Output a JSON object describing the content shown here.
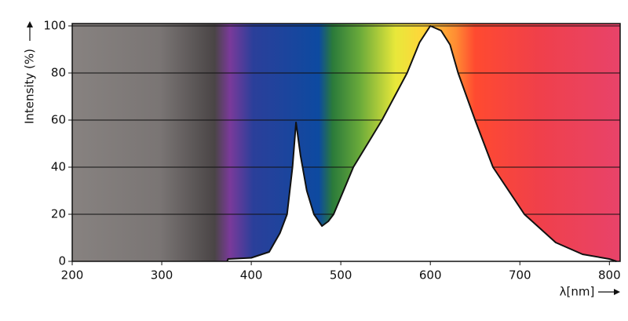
{
  "chart_data": {
    "type": "area",
    "x": [
      373,
      374,
      400,
      420,
      432,
      440,
      446,
      450,
      455,
      462,
      470,
      479,
      486,
      492,
      503,
      514,
      530,
      546,
      560,
      574,
      588,
      600,
      612,
      622,
      631,
      650,
      670,
      705,
      740,
      770,
      800,
      808
    ],
    "values": [
      0,
      1,
      1.5,
      4,
      12,
      20,
      40,
      59,
      45,
      30,
      20,
      15,
      17,
      20,
      30,
      40,
      50,
      60,
      70,
      80,
      93,
      100,
      98,
      92,
      80,
      60,
      40,
      20,
      8,
      3,
      1,
      0
    ],
    "xlim": [
      200,
      812
    ],
    "ylim": [
      0,
      101
    ],
    "xticks": [
      200,
      300,
      400,
      500,
      600,
      700,
      800
    ],
    "yticks": [
      0,
      20,
      40,
      60,
      80,
      100
    ],
    "xlabel": "λ[nm]",
    "ylabel": "Intensity (%)",
    "grid": true,
    "color": "#ffffff"
  }
}
